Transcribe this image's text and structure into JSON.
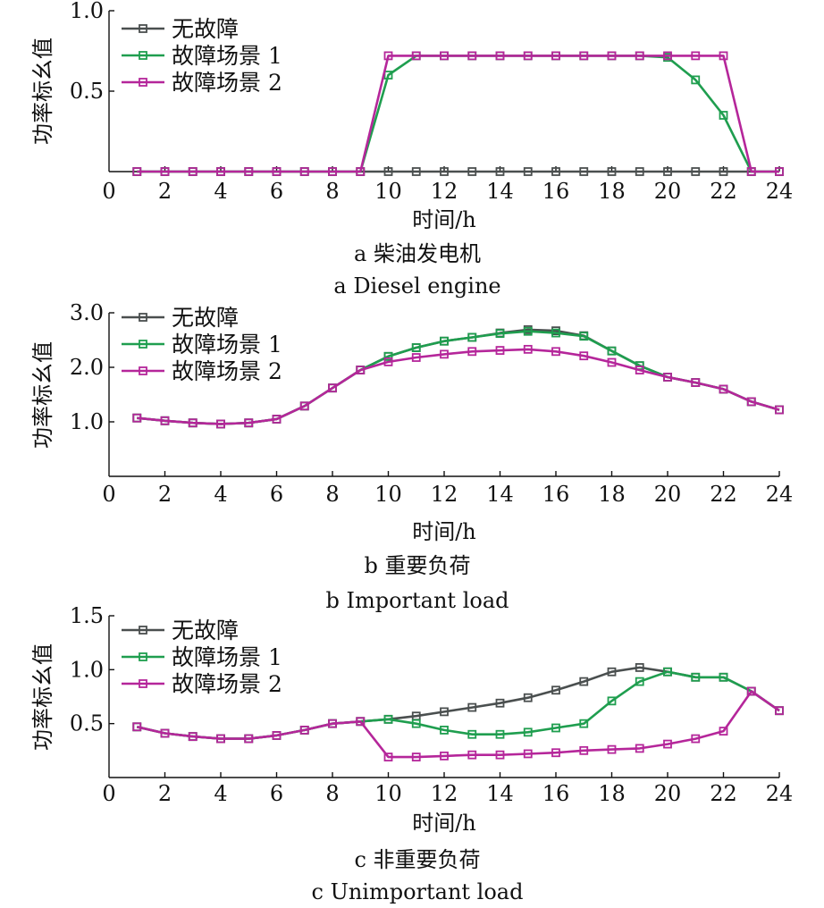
{
  "chart_data": [
    {
      "type": "line",
      "xlabel": "时间/h",
      "ylabel": "功率标幺值",
      "caption_cn": "a  柴油发电机",
      "caption_en": "a  Diesel engine",
      "xlim": [
        0,
        24
      ],
      "ylim": [
        0,
        1.0
      ],
      "xticks": [
        "0",
        "2",
        "4",
        "6",
        "8",
        "10",
        "12",
        "14",
        "16",
        "18",
        "20",
        "22",
        "24"
      ],
      "yticks": [
        "0.5",
        "1.0"
      ],
      "ytick_values": [
        0.5,
        1.0
      ],
      "legend_position": "top-left",
      "x": [
        1,
        2,
        3,
        4,
        5,
        6,
        7,
        8,
        9,
        10,
        11,
        12,
        13,
        14,
        15,
        16,
        17,
        18,
        19,
        20,
        21,
        22,
        23,
        24
      ],
      "series": [
        {
          "name": "无故障",
          "color": "#4a4f4f",
          "values": [
            0,
            0,
            0,
            0,
            0,
            0,
            0,
            0,
            0,
            0,
            0,
            0,
            0,
            0,
            0,
            0,
            0,
            0,
            0,
            0,
            0,
            0,
            0,
            0
          ]
        },
        {
          "name": "故障场景 1",
          "color": "#1f9e4f",
          "values": [
            0,
            0,
            0,
            0,
            0,
            0,
            0,
            0,
            0,
            0.6,
            0.72,
            0.72,
            0.72,
            0.72,
            0.72,
            0.72,
            0.72,
            0.72,
            0.72,
            0.71,
            0.57,
            0.35,
            0,
            0
          ]
        },
        {
          "name": "故障场景 2",
          "color": "#b5269a",
          "values": [
            0,
            0,
            0,
            0,
            0,
            0,
            0,
            0,
            0,
            0.72,
            0.72,
            0.72,
            0.72,
            0.72,
            0.72,
            0.72,
            0.72,
            0.72,
            0.72,
            0.72,
            0.72,
            0.72,
            0,
            0
          ]
        }
      ]
    },
    {
      "type": "line",
      "xlabel": "时间/h",
      "ylabel": "功率标幺值",
      "caption_cn": "b  重要负荷",
      "caption_en": "b  Important load",
      "xlim": [
        0,
        24
      ],
      "ylim": [
        0,
        3.0
      ],
      "xticks": [
        "0",
        "2",
        "4",
        "6",
        "8",
        "10",
        "12",
        "14",
        "16",
        "18",
        "20",
        "22",
        "24"
      ],
      "yticks": [
        "1.0",
        "2.0",
        "3.0"
      ],
      "ytick_values": [
        1.0,
        2.0,
        3.0
      ],
      "legend_position": "top-left",
      "x": [
        1,
        2,
        3,
        4,
        5,
        6,
        7,
        8,
        9,
        10,
        11,
        12,
        13,
        14,
        15,
        16,
        17,
        18,
        19,
        20,
        21,
        22,
        23,
        24
      ],
      "series": [
        {
          "name": "无故障",
          "color": "#4a4f4f",
          "values": [
            1.07,
            1.02,
            0.98,
            0.96,
            0.98,
            1.05,
            1.29,
            1.62,
            1.95,
            2.2,
            2.36,
            2.48,
            2.55,
            2.63,
            2.69,
            2.67,
            2.58,
            2.3,
            2.03,
            1.82,
            1.72,
            1.6,
            1.37,
            1.22
          ]
        },
        {
          "name": "故障场景 1",
          "color": "#1f9e4f",
          "values": [
            1.07,
            1.02,
            0.98,
            0.96,
            0.98,
            1.05,
            1.29,
            1.62,
            1.95,
            2.2,
            2.36,
            2.48,
            2.55,
            2.62,
            2.66,
            2.63,
            2.57,
            2.3,
            2.03,
            1.82,
            1.72,
            1.6,
            1.37,
            1.22
          ]
        },
        {
          "name": "故障场景 2",
          "color": "#b5269a",
          "values": [
            1.07,
            1.02,
            0.98,
            0.96,
            0.98,
            1.05,
            1.29,
            1.62,
            1.95,
            2.1,
            2.18,
            2.24,
            2.29,
            2.31,
            2.33,
            2.29,
            2.21,
            2.09,
            1.95,
            1.82,
            1.72,
            1.6,
            1.37,
            1.22
          ]
        }
      ]
    },
    {
      "type": "line",
      "xlabel": "时间/h",
      "ylabel": "功率标幺值",
      "caption_cn": "c  非重要负荷",
      "caption_en": "c  Unimportant  load",
      "xlim": [
        0,
        24
      ],
      "ylim": [
        0,
        1.5
      ],
      "xticks": [
        "0",
        "2",
        "4",
        "6",
        "8",
        "10",
        "12",
        "14",
        "16",
        "18",
        "20",
        "22",
        "24"
      ],
      "yticks": [
        "0.5",
        "1.0",
        "1.5"
      ],
      "ytick_values": [
        0.5,
        1.0,
        1.5
      ],
      "legend_position": "top-left",
      "x": [
        1,
        2,
        3,
        4,
        5,
        6,
        7,
        8,
        9,
        10,
        11,
        12,
        13,
        14,
        15,
        16,
        17,
        18,
        19,
        20,
        21,
        22,
        23,
        24
      ],
      "series": [
        {
          "name": "无故障",
          "color": "#4a4f4f",
          "values": [
            0.47,
            0.41,
            0.38,
            0.36,
            0.36,
            0.39,
            0.44,
            0.5,
            0.52,
            0.54,
            0.57,
            0.61,
            0.65,
            0.69,
            0.74,
            0.81,
            0.89,
            0.98,
            1.02,
            0.98,
            0.93,
            0.93,
            0.8,
            0.62
          ]
        },
        {
          "name": "故障场景 1",
          "color": "#1f9e4f",
          "values": [
            0.47,
            0.41,
            0.38,
            0.36,
            0.36,
            0.39,
            0.44,
            0.5,
            0.52,
            0.54,
            0.5,
            0.44,
            0.4,
            0.4,
            0.42,
            0.46,
            0.5,
            0.71,
            0.89,
            0.98,
            0.93,
            0.93,
            0.8,
            0.62
          ]
        },
        {
          "name": "故障场景 2",
          "color": "#b5269a",
          "values": [
            0.47,
            0.41,
            0.38,
            0.36,
            0.36,
            0.39,
            0.44,
            0.5,
            0.52,
            0.19,
            0.19,
            0.2,
            0.21,
            0.21,
            0.22,
            0.23,
            0.25,
            0.26,
            0.27,
            0.31,
            0.36,
            0.43,
            0.8,
            0.62
          ]
        }
      ]
    }
  ]
}
